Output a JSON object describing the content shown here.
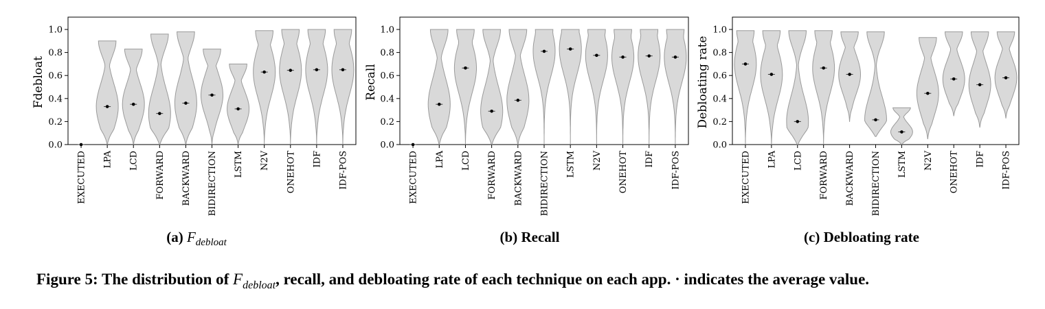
{
  "figure": {
    "caption_prefix": "Figure 5: The distribution of ",
    "caption_math_base": "F",
    "caption_math_sub": "debloat",
    "caption_suffix": ", recall, and debloating rate of each technique on each app. · indicates the average value."
  },
  "subcaptions": {
    "a_label": "(a)",
    "a_math_base": "F",
    "a_math_sub": "debloat",
    "b": "(b) Recall",
    "c": "(c) Debloating rate"
  },
  "chart_data": [
    {
      "type": "violin",
      "ylabel": "Fdebloat",
      "ylim": [
        0,
        1.0
      ],
      "yticks": [
        "0.0",
        "0.2",
        "0.4",
        "0.6",
        "0.8",
        "1.0"
      ],
      "categories": [
        "EXECUTED",
        "LPA",
        "LCD",
        "FORWARD",
        "BACKWARD",
        "BIDIRECTION",
        "LSTM",
        "N2V",
        "ONEHOT",
        "IDF",
        "IDF-POS"
      ],
      "means": [
        0.0,
        0.33,
        0.35,
        0.27,
        0.36,
        0.43,
        0.31,
        0.63,
        0.645,
        0.65,
        0.65
      ],
      "ranges": [
        [
          0,
          0
        ],
        [
          0,
          0.9
        ],
        [
          0,
          0.83
        ],
        [
          0,
          0.96
        ],
        [
          0,
          0.98
        ],
        [
          0,
          0.83
        ],
        [
          0,
          0.7
        ],
        [
          0,
          0.99
        ],
        [
          0,
          1.0
        ],
        [
          0,
          1.0
        ],
        [
          0,
          1.0
        ]
      ]
    },
    {
      "type": "violin",
      "ylabel": "Recall",
      "ylim": [
        0,
        1.0
      ],
      "yticks": [
        "0.0",
        "0.2",
        "0.4",
        "0.6",
        "0.8",
        "1.0"
      ],
      "categories": [
        "EXECUTED",
        "LPA",
        "LCD",
        "FORWARD",
        "BACKWARD",
        "BIDIRECTION",
        "LSTM",
        "N2V",
        "ONEHOT",
        "IDF",
        "IDF-POS"
      ],
      "means": [
        0.0,
        0.35,
        0.665,
        0.29,
        0.385,
        0.81,
        0.83,
        0.775,
        0.76,
        0.77,
        0.76
      ],
      "ranges": [
        [
          0,
          0
        ],
        [
          0,
          1.0
        ],
        [
          0,
          1.0
        ],
        [
          0,
          1.0
        ],
        [
          0,
          1.0
        ],
        [
          0,
          1.0
        ],
        [
          0,
          1.0
        ],
        [
          0,
          1.0
        ],
        [
          0,
          1.0
        ],
        [
          0,
          1.0
        ],
        [
          0,
          1.0
        ]
      ]
    },
    {
      "type": "violin",
      "ylabel": "Debloating rate",
      "ylim": [
        0,
        1.0
      ],
      "yticks": [
        "0.0",
        "0.2",
        "0.4",
        "0.6",
        "0.8",
        "1.0"
      ],
      "categories": [
        "EXECUTED",
        "LPA",
        "LCD",
        "FORWARD",
        "BACKWARD",
        "BIDIRECTION",
        "LSTM",
        "N2V",
        "ONEHOT",
        "IDF",
        "IDF-POS"
      ],
      "means": [
        0.7,
        0.61,
        0.2,
        0.665,
        0.61,
        0.215,
        0.11,
        0.445,
        0.57,
        0.52,
        0.58
      ],
      "ranges": [
        [
          0,
          0.99
        ],
        [
          0,
          0.99
        ],
        [
          0,
          0.99
        ],
        [
          0,
          0.99
        ],
        [
          0.2,
          0.98
        ],
        [
          0.07,
          0.98
        ],
        [
          0,
          0.32
        ],
        [
          0.05,
          0.93
        ],
        [
          0.25,
          0.98
        ],
        [
          0.15,
          0.98
        ],
        [
          0.23,
          0.98
        ]
      ]
    }
  ]
}
